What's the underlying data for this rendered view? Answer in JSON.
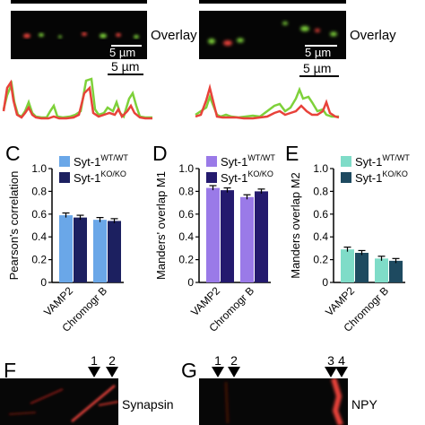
{
  "overlay_panels": [
    {
      "label": "Overlay",
      "scale": "5 µm"
    },
    {
      "label": "Overlay",
      "scale": "5 µm"
    }
  ],
  "trace_scales": [
    "5 µm",
    "5 µm"
  ],
  "colors": {
    "red": "#e8423a",
    "green": "#7ed13a"
  },
  "charts": [
    {
      "panel": "C",
      "type": "bar",
      "ylabel": "Pearson's correlation",
      "ylim": [
        0,
        1.0
      ],
      "yticks": [
        "0",
        "0.2",
        "0.4",
        "0.6",
        "0.8",
        "1.0"
      ],
      "categories": [
        "VAMP2",
        "Chromogr B"
      ],
      "legend": [
        {
          "prefix": "Syt-1",
          "sup": "WT/WT",
          "color": "#6aa7e8"
        },
        {
          "prefix": "Syt-1",
          "sup": "KO/KO",
          "color": "#1c2060"
        }
      ],
      "series": [
        {
          "values": [
            0.59,
            0.55
          ],
          "errors": [
            0.02,
            0.02
          ]
        },
        {
          "values": [
            0.57,
            0.54
          ],
          "errors": [
            0.02,
            0.02
          ]
        }
      ]
    },
    {
      "panel": "D",
      "type": "bar",
      "ylabel": "Manders' overlap M1",
      "ylim": [
        0,
        1.0
      ],
      "yticks": [
        "0",
        "0.2",
        "0.4",
        "0.6",
        "0.8",
        "1.0"
      ],
      "categories": [
        "VAMP2",
        "Chromogr B"
      ],
      "legend": [
        {
          "prefix": "Syt-1",
          "sup": "WT/WT",
          "color": "#9a7ae8"
        },
        {
          "prefix": "Syt-1",
          "sup": "KO/KO",
          "color": "#241a6e"
        }
      ],
      "series": [
        {
          "values": [
            0.83,
            0.75
          ],
          "errors": [
            0.02,
            0.02
          ]
        },
        {
          "values": [
            0.81,
            0.8
          ],
          "errors": [
            0.02,
            0.02
          ]
        }
      ]
    },
    {
      "panel": "E",
      "type": "bar",
      "ylabel": "Manders overlap M2",
      "ylim": [
        0,
        1.0
      ],
      "yticks": [
        "0",
        "0.2",
        "0.4",
        "0.6",
        "0.8",
        "1.0"
      ],
      "categories": [
        "VAMP2",
        "Chromogr B"
      ],
      "legend": [
        {
          "prefix": "Syt-1",
          "sup": "WT/WT",
          "color": "#7fdcc8"
        },
        {
          "prefix": "Syt-1",
          "sup": "KO/KO",
          "color": "#1e4a60"
        }
      ],
      "series": [
        {
          "values": [
            0.29,
            0.21
          ],
          "errors": [
            0.02,
            0.02
          ]
        },
        {
          "values": [
            0.26,
            0.19
          ],
          "errors": [
            0.02,
            0.02
          ]
        }
      ]
    }
  ],
  "kymographs": [
    {
      "panel": "F",
      "label": "Synapsin",
      "arrows": [
        "1",
        "2"
      ]
    },
    {
      "panel": "G",
      "label": "NPY",
      "arrows": [
        "1",
        "2",
        "3",
        "4"
      ]
    }
  ]
}
